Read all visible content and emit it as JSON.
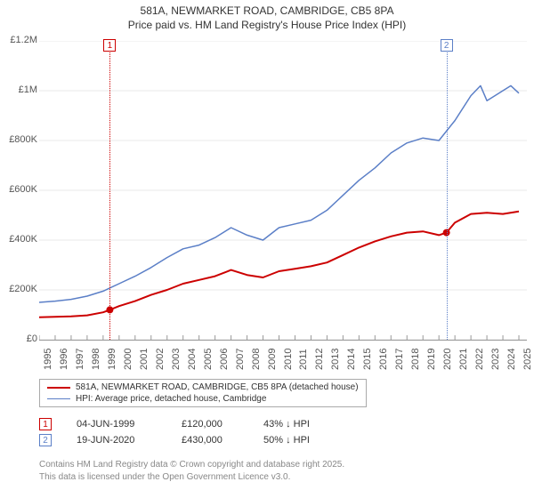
{
  "title_line1": "581A, NEWMARKET ROAD, CAMBRIDGE, CB5 8PA",
  "title_line2": "Price paid vs. HM Land Registry's House Price Index (HPI)",
  "chart": {
    "type": "line",
    "x_min": 1995,
    "x_max": 2025.5,
    "y_min": 0,
    "y_max": 1200000,
    "background_color": "#ffffff",
    "grid_color": "#e8e8e8",
    "axis_color": "#999999",
    "y_ticks": [
      0,
      200000,
      400000,
      600000,
      800000,
      1000000,
      1200000
    ],
    "y_labels": [
      "£0",
      "£200K",
      "£400K",
      "£600K",
      "£800K",
      "£1M",
      "£1.2M"
    ],
    "x_ticks": [
      1995,
      1996,
      1997,
      1998,
      1999,
      2000,
      2001,
      2002,
      2003,
      2004,
      2005,
      2006,
      2007,
      2008,
      2009,
      2010,
      2011,
      2012,
      2013,
      2014,
      2015,
      2016,
      2017,
      2018,
      2019,
      2020,
      2021,
      2022,
      2023,
      2024,
      2025
    ],
    "series": [
      {
        "name": "price_paid",
        "color": "#cc0000",
        "width": 2,
        "points": [
          [
            1995,
            90000
          ],
          [
            1996,
            92000
          ],
          [
            1997,
            94000
          ],
          [
            1998,
            98000
          ],
          [
            1999,
            110000
          ],
          [
            1999.42,
            120000
          ],
          [
            2000,
            135000
          ],
          [
            2001,
            155000
          ],
          [
            2002,
            180000
          ],
          [
            2003,
            200000
          ],
          [
            2004,
            225000
          ],
          [
            2005,
            240000
          ],
          [
            2006,
            255000
          ],
          [
            2007,
            280000
          ],
          [
            2008,
            260000
          ],
          [
            2009,
            250000
          ],
          [
            2010,
            275000
          ],
          [
            2011,
            285000
          ],
          [
            2012,
            295000
          ],
          [
            2013,
            310000
          ],
          [
            2014,
            340000
          ],
          [
            2015,
            370000
          ],
          [
            2016,
            395000
          ],
          [
            2017,
            415000
          ],
          [
            2018,
            430000
          ],
          [
            2019,
            435000
          ],
          [
            2020,
            420000
          ],
          [
            2020.47,
            430000
          ],
          [
            2021,
            470000
          ],
          [
            2022,
            505000
          ],
          [
            2023,
            510000
          ],
          [
            2024,
            505000
          ],
          [
            2025,
            515000
          ]
        ]
      },
      {
        "name": "hpi",
        "color": "#5b7fc7",
        "width": 1.5,
        "points": [
          [
            1995,
            150000
          ],
          [
            1996,
            155000
          ],
          [
            1997,
            162000
          ],
          [
            1998,
            175000
          ],
          [
            1999,
            195000
          ],
          [
            2000,
            225000
          ],
          [
            2001,
            255000
          ],
          [
            2002,
            290000
          ],
          [
            2003,
            330000
          ],
          [
            2004,
            365000
          ],
          [
            2005,
            380000
          ],
          [
            2006,
            410000
          ],
          [
            2007,
            450000
          ],
          [
            2008,
            420000
          ],
          [
            2009,
            400000
          ],
          [
            2010,
            450000
          ],
          [
            2011,
            465000
          ],
          [
            2012,
            480000
          ],
          [
            2013,
            520000
          ],
          [
            2014,
            580000
          ],
          [
            2015,
            640000
          ],
          [
            2016,
            690000
          ],
          [
            2017,
            750000
          ],
          [
            2018,
            790000
          ],
          [
            2019,
            810000
          ],
          [
            2020,
            800000
          ],
          [
            2021,
            880000
          ],
          [
            2022,
            980000
          ],
          [
            2022.6,
            1020000
          ],
          [
            2023,
            960000
          ],
          [
            2023.5,
            980000
          ],
          [
            2024,
            1000000
          ],
          [
            2024.5,
            1020000
          ],
          [
            2025,
            990000
          ]
        ]
      }
    ],
    "sale_markers": [
      {
        "x": 1999.42,
        "y": 120000,
        "color": "#cc0000"
      },
      {
        "x": 2020.47,
        "y": 430000,
        "color": "#cc0000"
      }
    ],
    "vlines": [
      {
        "id": "1",
        "x": 1999.42,
        "color": "#cc0000"
      },
      {
        "id": "2",
        "x": 2020.47,
        "color": "#5b7fc7"
      }
    ]
  },
  "legend": {
    "items": [
      {
        "color": "#cc0000",
        "width": 2,
        "label": "581A, NEWMARKET ROAD, CAMBRIDGE, CB5 8PA (detached house)"
      },
      {
        "color": "#5b7fc7",
        "width": 1.5,
        "label": "HPI: Average price, detached house, Cambridge"
      }
    ]
  },
  "rows": [
    {
      "id": "1",
      "color": "#cc0000",
      "date": "04-JUN-1999",
      "price": "£120,000",
      "rel": "43% ↓ HPI"
    },
    {
      "id": "2",
      "color": "#5b7fc7",
      "date": "19-JUN-2020",
      "price": "£430,000",
      "rel": "50% ↓ HPI"
    }
  ],
  "footer_line1": "Contains HM Land Registry data © Crown copyright and database right 2025.",
  "footer_line2": "This data is licensed under the Open Government Licence v3.0."
}
